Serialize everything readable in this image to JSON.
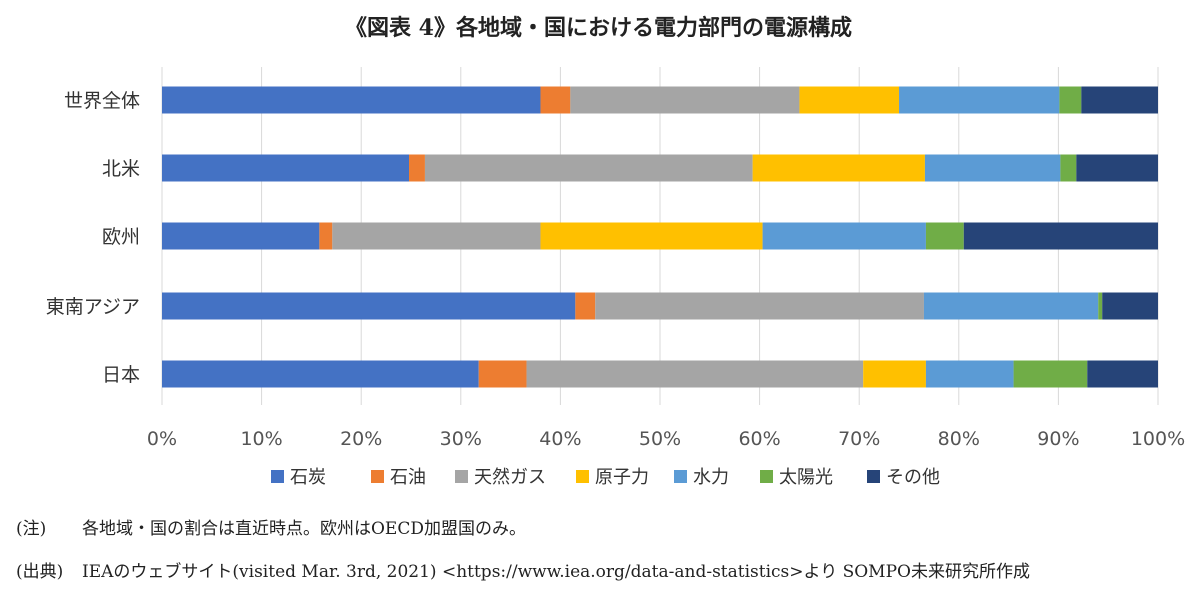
{
  "title": "《図表 4》各地域・国における電力部門の電源構成",
  "chart_data": {
    "type": "bar",
    "orientation": "horizontal",
    "stacked": "percent",
    "categories": [
      "世界全体",
      "北米",
      "欧州",
      "東南アジア",
      "日本"
    ],
    "series": [
      {
        "name": "石炭",
        "color": "#4472C4",
        "values": [
          38.0,
          24.8,
          15.8,
          41.5,
          31.8
        ]
      },
      {
        "name": "石油",
        "color": "#ED7D31",
        "values": [
          3.0,
          1.6,
          1.3,
          2.0,
          4.8
        ]
      },
      {
        "name": "天然ガス",
        "color": "#A5A5A5",
        "values": [
          23.0,
          32.9,
          20.9,
          33.0,
          33.8
        ]
      },
      {
        "name": "原子力",
        "color": "#FFC000",
        "values": [
          10.0,
          17.3,
          22.3,
          0.0,
          6.3
        ]
      },
      {
        "name": "水力",
        "color": "#5B9BD5",
        "values": [
          16.1,
          13.6,
          16.4,
          17.5,
          8.8
        ]
      },
      {
        "name": "太陽光",
        "color": "#70AD47",
        "values": [
          2.2,
          1.6,
          3.8,
          0.4,
          7.4
        ]
      },
      {
        "name": "その他",
        "color": "#264478",
        "values": [
          7.7,
          8.2,
          19.5,
          5.6,
          7.1
        ]
      }
    ],
    "xlim": [
      0,
      100
    ],
    "xticks": [
      "0%",
      "10%",
      "20%",
      "30%",
      "40%",
      "50%",
      "60%",
      "70%",
      "80%",
      "90%",
      "100%"
    ],
    "grid": "vertical",
    "legend": "bottom"
  },
  "notes": {
    "note1_tag": "(注)",
    "note1_text": "各地域・国の割合は直近時点。欧州はOECD加盟国のみ。",
    "note2_tag": "(出典)",
    "note2_text": "IEAのウェブサイト(visited Mar. 3rd, 2021) <https://www.iea.org/data-and-statistics>より SOMPO未来研究所作成"
  }
}
